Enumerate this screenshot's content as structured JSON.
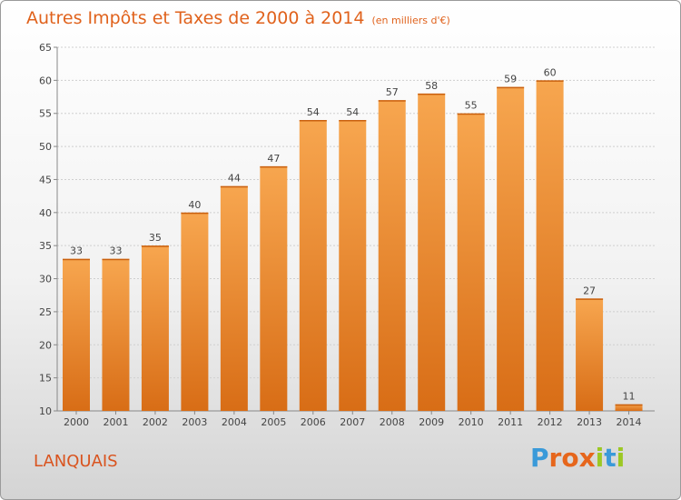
{
  "header": {
    "title": "Autres Impôts et Taxes de 2000 à 2014",
    "unit": "(en milliers d'€)"
  },
  "footer": {
    "place": "LANQUAIS",
    "logo": [
      "P",
      "r",
      "o",
      "x",
      "i",
      "t",
      "i"
    ]
  },
  "colors": {
    "bar_light": "#f7a64f",
    "bar_dark": "#d86d16",
    "title": "#e0621c",
    "logo": [
      "#3a9ad9",
      "#e6661c",
      "#e6661c",
      "#e6661c",
      "#9cc824",
      "#3a9ad9",
      "#9cc824"
    ]
  },
  "chart_data": {
    "type": "bar",
    "title": "Autres Impôts et Taxes de 2000 à 2014",
    "categories": [
      "2000",
      "2001",
      "2002",
      "2003",
      "2004",
      "2005",
      "2006",
      "2007",
      "2008",
      "2009",
      "2010",
      "2011",
      "2012",
      "2013",
      "2014"
    ],
    "values": [
      33,
      33,
      35,
      40,
      44,
      47,
      54,
      54,
      57,
      58,
      55,
      59,
      60,
      27,
      11
    ],
    "ylim": [
      10,
      65
    ],
    "yticks": [
      10,
      15,
      20,
      25,
      30,
      35,
      40,
      45,
      50,
      55,
      60,
      65
    ],
    "grid": true
  }
}
